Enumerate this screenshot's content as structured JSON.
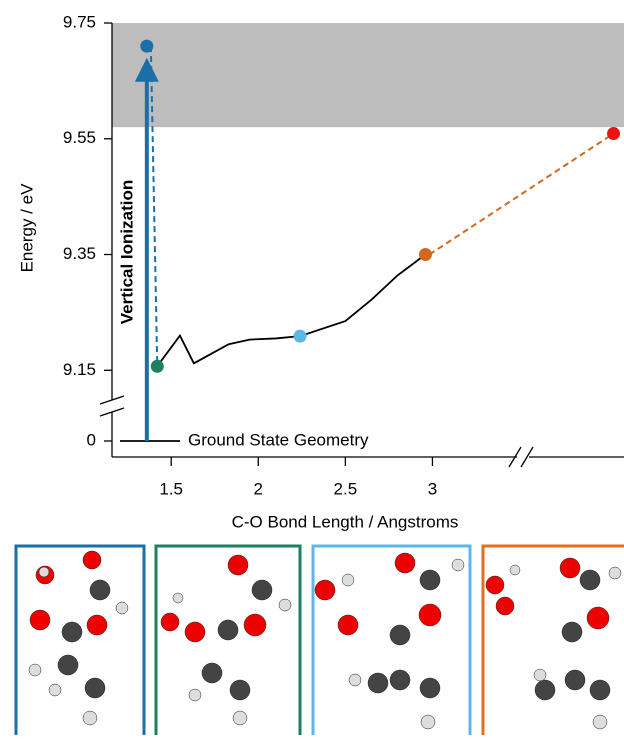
{
  "chart_data": {
    "type": "scatter",
    "y_label": "Energy / eV",
    "x_label": "C-O Bond Length / Angstroms",
    "annotation": "Vertical Ionization",
    "ground_state": {
      "label": "Ground State Geometry",
      "value": 0
    },
    "xlim": [
      1.16,
      4.1
    ],
    "xticks": [
      1.5,
      2.0,
      2.5,
      3.0
    ],
    "ylim": [
      9.09,
      9.75
    ],
    "yticks": [
      9.75,
      9.55,
      9.35,
      9.15
    ],
    "y_break_ticks": [
      0
    ],
    "shaded_region": [
      9.57,
      9.75
    ],
    "arrow": {
      "x": 1.36,
      "y": [
        0,
        9.69
      ],
      "color": "#1a6fa8"
    },
    "series": [
      {
        "color": "#1a6fa8",
        "x": [
          1.36
        ],
        "values": [
          9.71
        ]
      },
      {
        "color": "#1a8060",
        "x": [
          1.42
        ],
        "values": [
          9.157
        ]
      },
      {
        "color": "#5bb8e6",
        "x": [
          2.24
        ],
        "values": [
          9.209
        ]
      },
      {
        "color": "#d2691e",
        "x": [
          2.96
        ],
        "values": [
          9.35
        ]
      },
      {
        "color": "#ee1111",
        "x": [
          4.04
        ],
        "values": [
          9.559
        ]
      }
    ],
    "curve": {
      "x": [
        1.42,
        1.55,
        1.63,
        1.83,
        1.95,
        2.1,
        2.24,
        2.5,
        2.65,
        2.8,
        2.96
      ],
      "values": [
        9.157,
        9.21,
        9.162,
        9.195,
        9.203,
        9.205,
        9.209,
        9.235,
        9.272,
        9.314,
        9.35
      ]
    }
  }
}
